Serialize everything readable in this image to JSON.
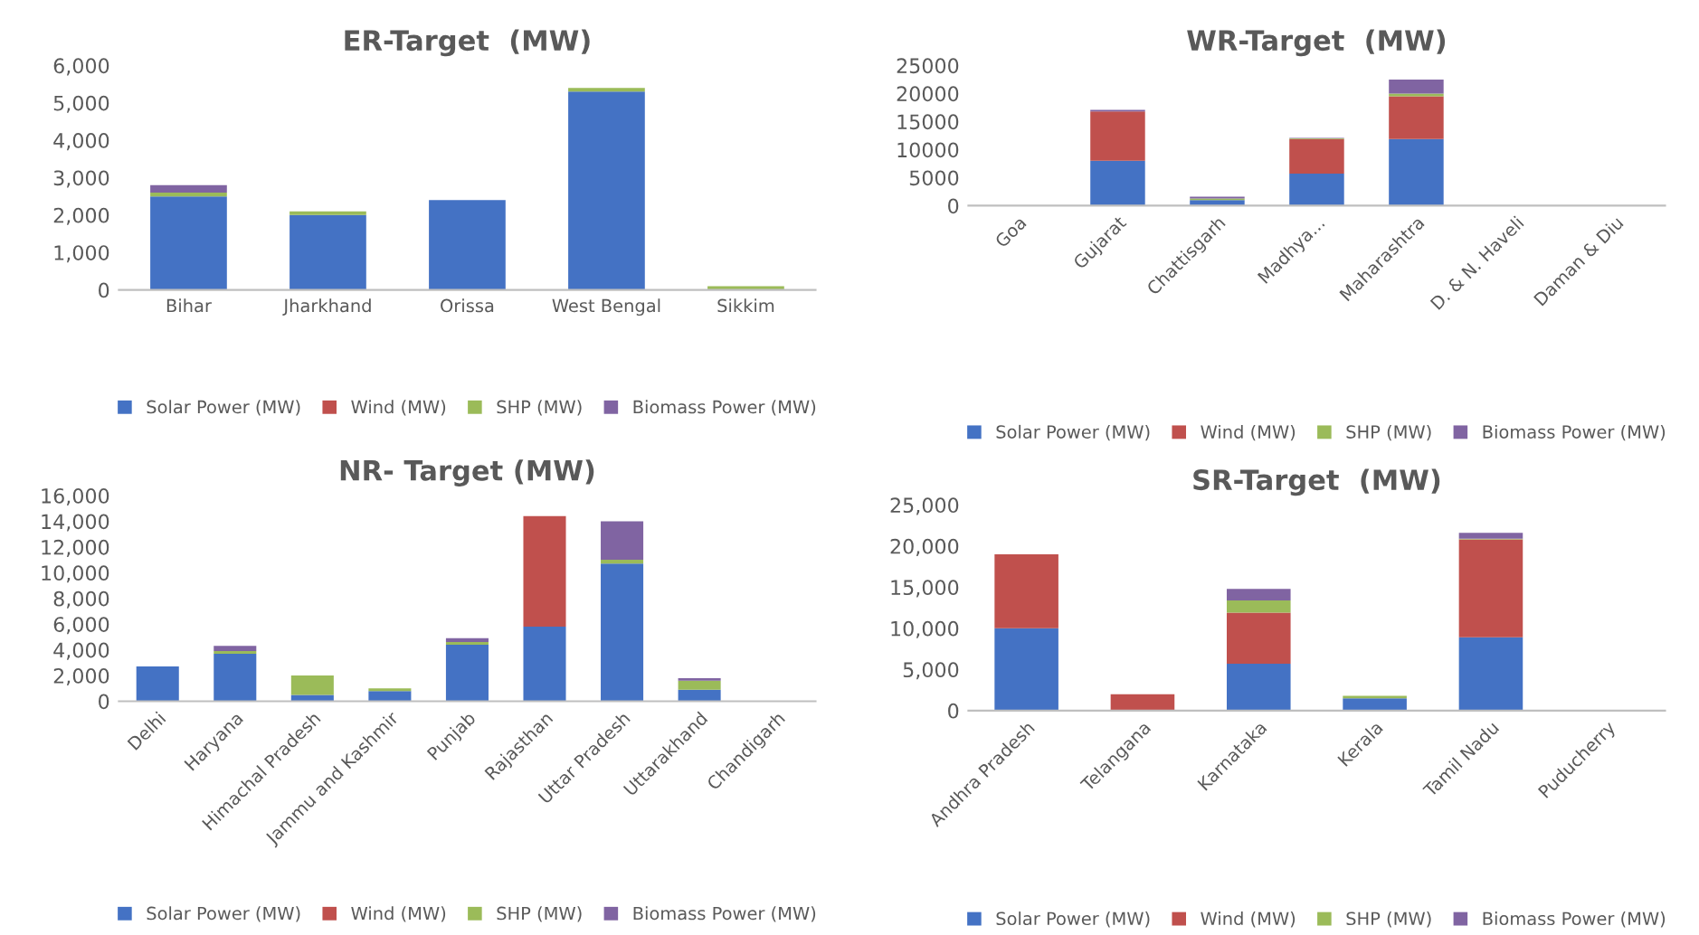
{
  "chart_data": [
    {
      "type": "bar",
      "title": "ER-Target  (MW)",
      "stacked": true,
      "legend": "bottom",
      "grid": false,
      "categories": [
        "Bihar",
        "Jharkhand",
        "Orissa",
        "West Bengal",
        "Sikkim"
      ],
      "series": [
        {
          "name": "Solar Power (MW)",
          "color": "#4472c4",
          "values": [
            2500,
            2000,
            2400,
            5300,
            null
          ]
        },
        {
          "name": "Wind (MW)",
          "color": "#c0504d",
          "values": [
            null,
            null,
            null,
            null,
            null
          ]
        },
        {
          "name": "SHP (MW)",
          "color": "#9bbb59",
          "values": [
            100,
            100,
            0,
            100,
            100
          ]
        },
        {
          "name": "Biomass Power (MW)",
          "color": "#8064a2",
          "values": [
            200,
            0,
            0,
            0,
            0
          ]
        }
      ],
      "ylim": [
        0,
        6000
      ],
      "yticks": [
        0,
        {
          "value": 1000,
          "label": "1,000"
        },
        {
          "value": 2000,
          "label": "2,000"
        },
        {
          "value": 3000,
          "label": "3,000"
        },
        {
          "value": 4000,
          "label": "4,000"
        },
        {
          "value": 5000,
          "label": "5,000"
        },
        {
          "value": 6000,
          "label": "6,000"
        }
      ]
    },
    {
      "type": "bar",
      "title": "WR-Target  (MW)",
      "stacked": true,
      "legend": "bottom",
      "grid": false,
      "categories": [
        "Goa",
        "Gujarat",
        "Chattisgarh",
        "Madhya...",
        "Maharashtra",
        "D. & N. Haveli",
        "Daman & Diu"
      ],
      "series": [
        {
          "name": "Solar Power (MW)",
          "color": "#4472c4",
          "values": [
            0,
            8000,
            1000,
            5700,
            11900,
            0,
            0
          ]
        },
        {
          "name": "Wind (MW)",
          "color": "#c0504d",
          "values": [
            0,
            8800,
            0,
            6200,
            7600,
            0,
            0
          ]
        },
        {
          "name": "SHP (MW)",
          "color": "#9bbb59",
          "values": [
            0,
            0,
            300,
            100,
            500,
            0,
            0
          ]
        },
        {
          "name": "Biomass Power (MW)",
          "color": "#8064a2",
          "values": [
            0,
            300,
            300,
            100,
            2500,
            0,
            0
          ]
        }
      ],
      "ylim": [
        0,
        25000
      ],
      "yticks": [
        0,
        5000,
        10000,
        15000,
        20000,
        25000
      ]
    },
    {
      "type": "bar",
      "title": "NR- Target (MW)",
      "stacked": true,
      "legend": "bottom",
      "grid": false,
      "categories": [
        "Delhi",
        "Haryana",
        "Himachal Pradesh",
        "Jammu and Kashmir",
        "Punjab",
        "Rajasthan",
        "Uttar Pradesh",
        "Uttarakhand",
        "Chandigarh"
      ],
      "series": [
        {
          "name": "Solar Power (MW)",
          "color": "#4472c4",
          "values": [
            2700,
            3700,
            500,
            800,
            4400,
            5800,
            10700,
            900,
            null
          ]
        },
        {
          "name": "Wind (MW)",
          "color": "#c0504d",
          "values": [
            0,
            0,
            0,
            0,
            0,
            8600,
            0,
            0,
            0
          ]
        },
        {
          "name": "SHP (MW)",
          "color": "#9bbb59",
          "values": [
            0,
            200,
            1500,
            200,
            200,
            0,
            300,
            700,
            0
          ]
        },
        {
          "name": "Biomass Power (MW)",
          "color": "#8064a2",
          "values": [
            0,
            400,
            0,
            0,
            300,
            0,
            3000,
            200,
            0
          ]
        }
      ],
      "ylim": [
        0,
        16000
      ],
      "yticks": [
        0,
        {
          "value": 2000,
          "label": "2,000"
        },
        {
          "value": 4000,
          "label": "4,000"
        },
        {
          "value": 6000,
          "label": "6,000"
        },
        {
          "value": 8000,
          "label": "8,000"
        },
        {
          "value": 10000,
          "label": "10,000"
        },
        {
          "value": 12000,
          "label": "12,000"
        },
        {
          "value": 14000,
          "label": "14,000"
        },
        {
          "value": 16000,
          "label": "16,000"
        }
      ]
    },
    {
      "type": "bar",
      "title": "SR-Target  (MW)",
      "stacked": true,
      "legend": "bottom",
      "grid": false,
      "categories": [
        "Andhra Pradesh",
        "Telangana",
        "Karnataka",
        "Kerala",
        "Tamil Nadu",
        "Puducherry"
      ],
      "series": [
        {
          "name": "Solar Power (MW)",
          "color": "#4472c4",
          "values": [
            10000,
            0,
            5700,
            1500,
            8900,
            0
          ]
        },
        {
          "name": "Wind (MW)",
          "color": "#c0504d",
          "values": [
            9000,
            2000,
            6200,
            0,
            11900,
            0
          ]
        },
        {
          "name": "SHP (MW)",
          "color": "#9bbb59",
          "values": [
            0,
            0,
            1500,
            300,
            100,
            0
          ]
        },
        {
          "name": "Biomass Power (MW)",
          "color": "#8064a2",
          "values": [
            0,
            0,
            1400,
            0,
            700,
            0
          ]
        }
      ],
      "ylim": [
        0,
        25000
      ],
      "yticks": [
        0,
        {
          "value": 5000,
          "label": "5,000"
        },
        {
          "value": 10000,
          "label": "10,000"
        },
        {
          "value": 15000,
          "label": "15,000"
        },
        {
          "value": 20000,
          "label": "20,000"
        },
        {
          "value": 25000,
          "label": "25,000"
        }
      ]
    }
  ]
}
